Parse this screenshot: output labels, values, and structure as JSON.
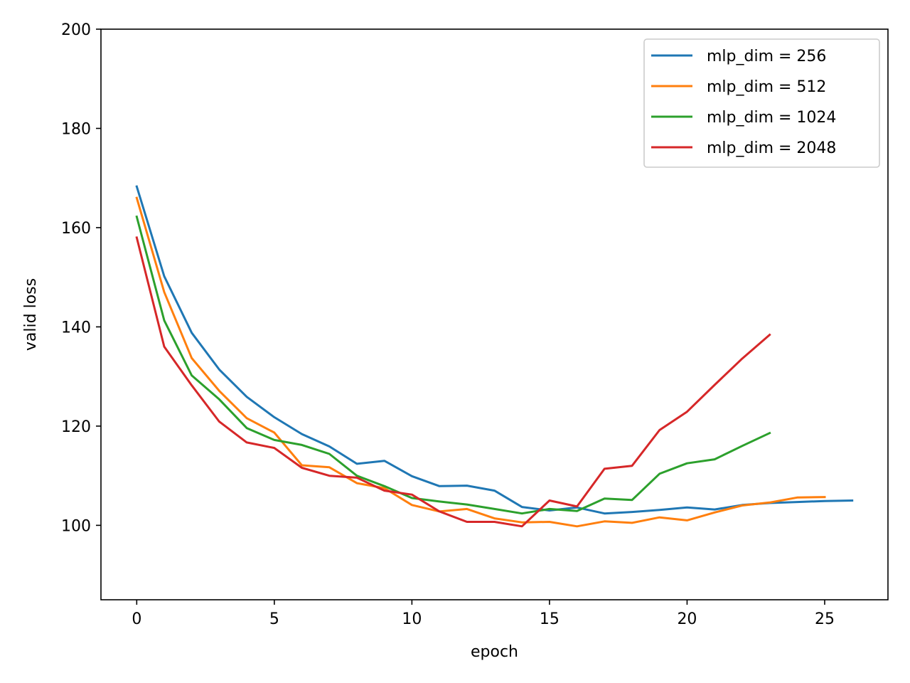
{
  "chart_data": {
    "type": "line",
    "title": "",
    "xlabel": "epoch",
    "ylabel": "valid loss",
    "xlim": [
      -1.3,
      27.3
    ],
    "ylim": [
      85,
      200
    ],
    "xticks": [
      0,
      5,
      10,
      15,
      20,
      25
    ],
    "yticks": [
      100,
      120,
      140,
      160,
      180,
      200
    ],
    "grid": false,
    "legend_position": "top-right",
    "series": [
      {
        "name": "mlp_dim = 256",
        "color": "#1f77b4",
        "x": [
          0,
          1,
          2,
          3,
          4,
          5,
          6,
          7,
          8,
          9,
          10,
          11,
          12,
          13,
          14,
          15,
          16,
          17,
          18,
          19,
          20,
          21,
          22,
          23,
          24,
          25,
          26
        ],
        "y": [
          168.3,
          150.2,
          138.8,
          131.4,
          125.9,
          121.8,
          118.4,
          115.9,
          112.4,
          113.0,
          109.9,
          107.9,
          108.0,
          107.0,
          103.7,
          103.0,
          103.6,
          102.4,
          102.7,
          103.1,
          103.6,
          103.2,
          104.1,
          104.5,
          104.7,
          104.9,
          105.0
        ]
      },
      {
        "name": "mlp_dim = 512",
        "color": "#ff7f0e",
        "x": [
          0,
          1,
          2,
          3,
          4,
          5,
          6,
          7,
          8,
          9,
          10,
          11,
          12,
          13,
          14,
          15,
          16,
          17,
          18,
          19,
          20,
          21,
          22,
          23,
          24,
          25
        ],
        "y": [
          166.0,
          147.0,
          133.7,
          127.1,
          121.6,
          118.7,
          112.1,
          111.7,
          108.5,
          107.5,
          104.1,
          102.8,
          103.3,
          101.4,
          100.6,
          100.7,
          99.8,
          100.8,
          100.5,
          101.6,
          101.0,
          102.6,
          104.0,
          104.6,
          105.6,
          105.7
        ]
      },
      {
        "name": "mlp_dim = 1024",
        "color": "#2ca02c",
        "x": [
          0,
          1,
          2,
          3,
          4,
          5,
          6,
          7,
          8,
          9,
          10,
          11,
          12,
          13,
          14,
          15,
          16,
          17,
          18,
          19,
          20,
          21,
          22,
          23
        ],
        "y": [
          162.2,
          141.3,
          130.2,
          125.4,
          119.6,
          117.2,
          116.2,
          114.4,
          110.0,
          107.9,
          105.5,
          104.8,
          104.2,
          103.3,
          102.4,
          103.3,
          102.9,
          105.4,
          105.1,
          110.4,
          112.5,
          113.3,
          116.0,
          118.6
        ]
      },
      {
        "name": "mlp_dim = 2048",
        "color": "#d62728",
        "x": [
          0,
          1,
          2,
          3,
          4,
          5,
          6,
          7,
          8,
          9,
          10,
          11,
          12,
          13,
          14,
          15,
          16,
          17,
          18,
          19,
          20,
          21,
          22,
          23
        ],
        "y": [
          158.0,
          136.0,
          128.2,
          120.9,
          116.7,
          115.6,
          111.6,
          110.0,
          109.6,
          107.0,
          106.2,
          102.8,
          100.7,
          100.7,
          99.8,
          105.0,
          103.8,
          111.4,
          112.0,
          119.2,
          122.9,
          128.3,
          133.6,
          138.4
        ]
      }
    ]
  }
}
